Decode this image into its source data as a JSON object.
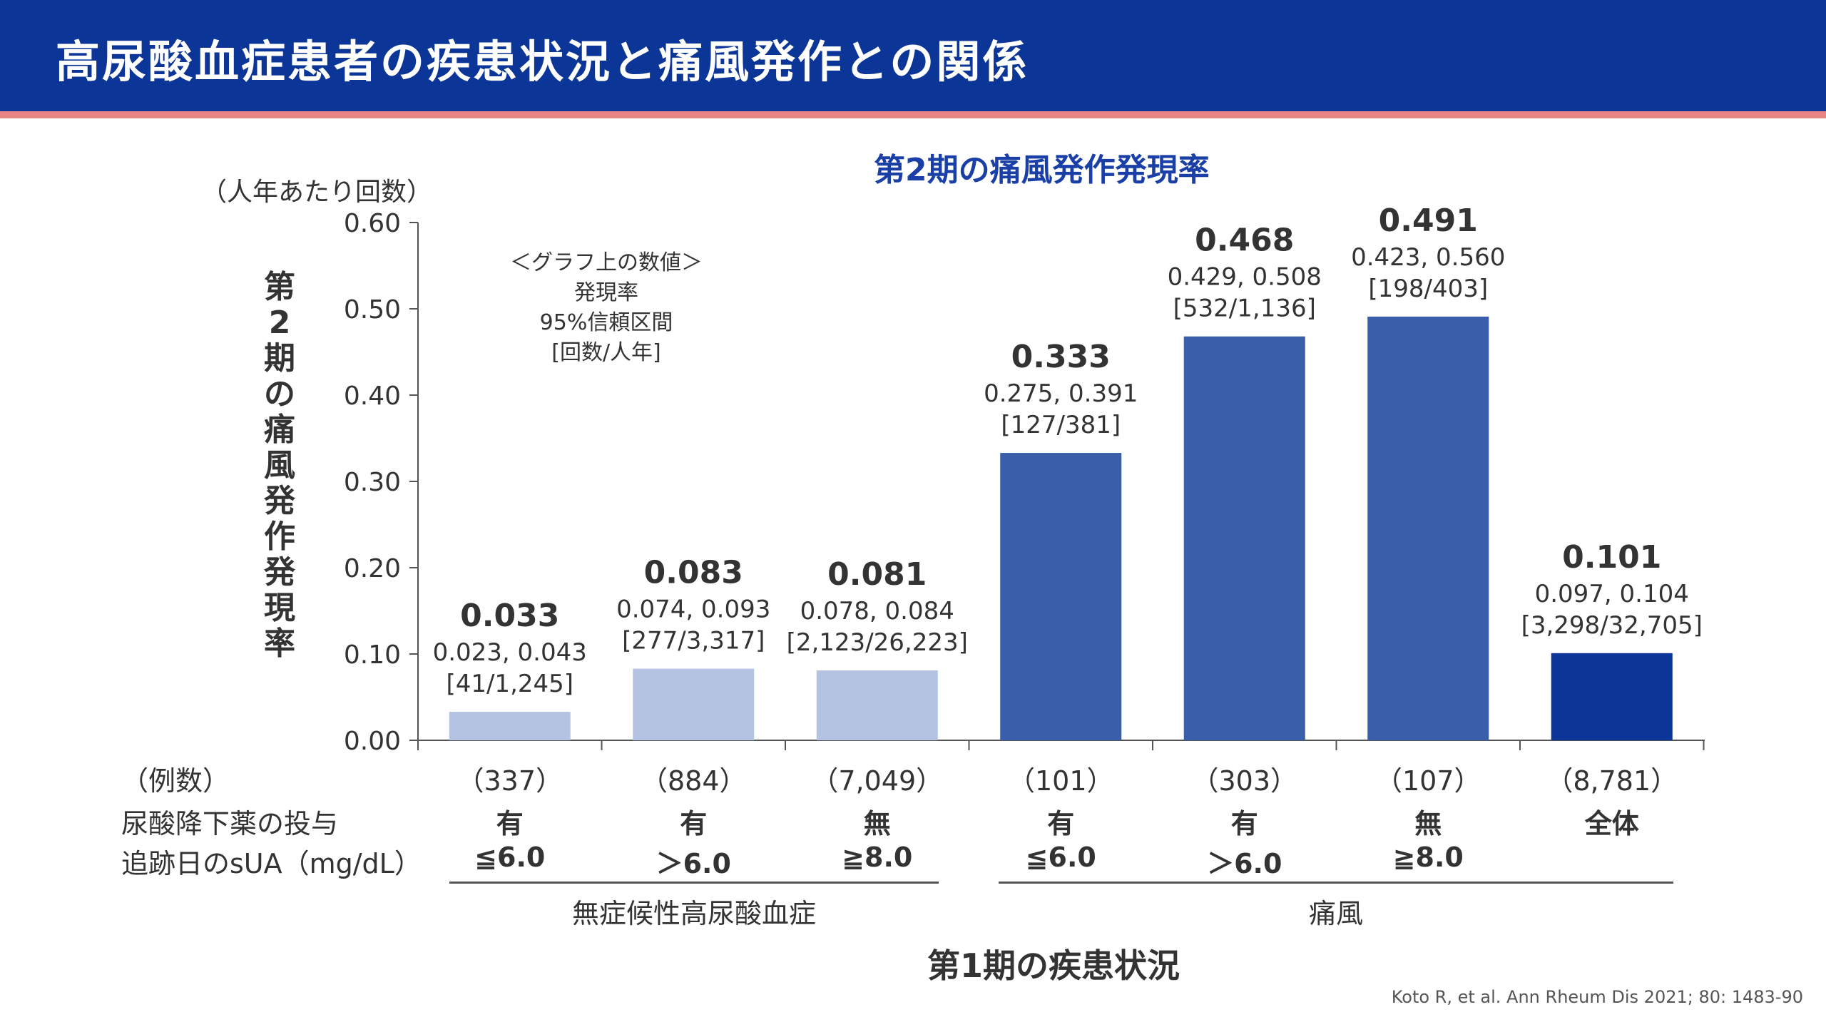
{
  "header": {
    "title": "高尿酸血症患者の疾患状況と痛風発作との関係"
  },
  "chart_data": {
    "type": "bar",
    "title": "第2期の痛風発作発現率",
    "ylabel": "第2期の痛風発作発現率",
    "y_unit": "（人年あたり回数）",
    "xlabel": "第1期の疾患状況",
    "ylim": [
      0,
      0.6
    ],
    "y_ticks": [
      "0.00",
      "0.10",
      "0.20",
      "0.30",
      "0.40",
      "0.50",
      "0.60"
    ],
    "grid": false,
    "legend_note": [
      "＜グラフ上の数値＞",
      "発現率",
      "95%信頼区間",
      "[回数/人年]"
    ],
    "categories": [
      {
        "n": "（337）",
        "drug": "有",
        "sua": "≦6.0",
        "value": 0.033,
        "value_label": "0.033",
        "ci": "0.023, 0.043",
        "events": "[41/1,245]",
        "color": "#b4c3e2"
      },
      {
        "n": "（884）",
        "drug": "有",
        "sua": "＞6.0",
        "value": 0.083,
        "value_label": "0.083",
        "ci": "0.074, 0.093",
        "events": "[277/3,317]",
        "color": "#b4c3e2"
      },
      {
        "n": "（7,049）",
        "drug": "無",
        "sua": "≧8.0",
        "value": 0.081,
        "value_label": "0.081",
        "ci": "0.078, 0.084",
        "events": "[2,123/26,223]",
        "color": "#b4c3e2"
      },
      {
        "n": "（101）",
        "drug": "有",
        "sua": "≦6.0",
        "value": 0.333,
        "value_label": "0.333",
        "ci": "0.275, 0.391",
        "events": "[127/381]",
        "color": "#3a5ea9"
      },
      {
        "n": "（303）",
        "drug": "有",
        "sua": "＞6.0",
        "value": 0.468,
        "value_label": "0.468",
        "ci": "0.429, 0.508",
        "events": "[532/1,136]",
        "color": "#3a5ea9"
      },
      {
        "n": "（107）",
        "drug": "無",
        "sua": "≧8.0",
        "value": 0.491,
        "value_label": "0.491",
        "ci": "0.423, 0.560",
        "events": "[198/403]",
        "color": "#3a5ea9"
      },
      {
        "n": "（8,781）",
        "drug": "全体",
        "sua": "",
        "value": 0.101,
        "value_label": "0.101",
        "ci": "0.097, 0.104",
        "events": "[3,298/32,705]",
        "color": "#0b3596"
      }
    ],
    "row_labels": {
      "n": "（例数）",
      "drug": "尿酸降下薬の投与",
      "sua": "追跡日のsUA（mg/dL）"
    },
    "groups": [
      "無症候性高尿酸血症",
      "痛風"
    ]
  },
  "citation": "Koto R, et al. Ann Rheum Dis 2021; 80: 1483-90"
}
